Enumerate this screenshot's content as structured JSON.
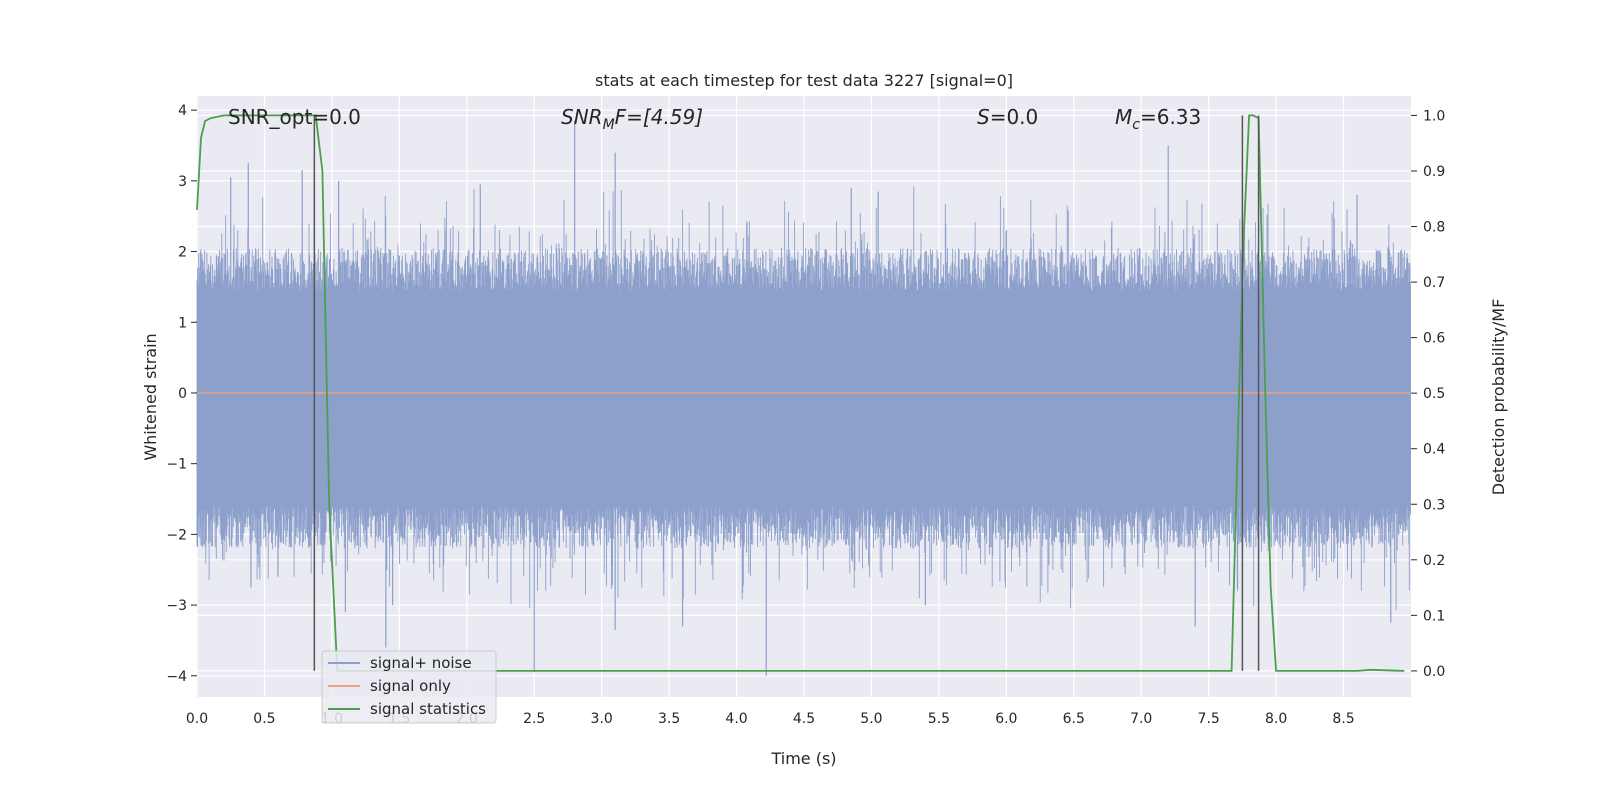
{
  "chart_data": {
    "type": "line",
    "title": "stats at each timestep for test data 3227 [signal=0]",
    "xlabel": "Time (s)",
    "ylabel": "Whitened strain",
    "ylabel_right": "Detection probability/MF",
    "xlim": [
      0.0,
      9.0
    ],
    "ylim": [
      -4.3,
      4.2
    ],
    "ylim_right": [
      -0.047,
      1.035
    ],
    "x_ticks": [
      0.0,
      0.5,
      1.0,
      1.5,
      2.0,
      2.5,
      3.0,
      3.5,
      4.0,
      4.5,
      5.0,
      5.5,
      6.0,
      6.5,
      7.0,
      7.5,
      8.0,
      8.5
    ],
    "x_tick_labels": [
      "0.0",
      "0.5",
      "1.0",
      "1.5",
      "2.0",
      "2.5",
      "3.0",
      "3.5",
      "4.0",
      "4.5",
      "5.0",
      "5.5",
      "6.0",
      "6.5",
      "7.0",
      "7.5",
      "8.0",
      "8.5"
    ],
    "y_ticks": [
      -4,
      -3,
      -2,
      -1,
      0,
      1,
      2,
      3,
      4
    ],
    "y_tick_labels": [
      "−4",
      "−3",
      "−2",
      "−1",
      "0",
      "1",
      "2",
      "3",
      "4"
    ],
    "y_ticks_right": [
      0.0,
      0.1,
      0.2,
      0.3,
      0.4,
      0.5,
      0.6,
      0.7,
      0.8,
      0.9,
      1.0
    ],
    "y_tick_labels_right": [
      "0.0",
      "0.1",
      "0.2",
      "0.3",
      "0.4",
      "0.5",
      "0.6",
      "0.7",
      "0.8",
      "0.9",
      "1.0"
    ],
    "grid": true,
    "legend_position": "lower-left",
    "annotations": {
      "snr_opt": "SNR_opt=0.0",
      "snr_mf_prefix": "SNR",
      "snr_mf_sub": "M",
      "snr_mf_suffix": "F=[4.59]",
      "s_prefix": "S",
      "s_suffix": "=0.0",
      "mc_prefix": "M",
      "mc_sub": "c",
      "mc_suffix": "=6.33"
    },
    "series": [
      {
        "name": "signal+ noise",
        "color": "#8da0cb",
        "axis": "left",
        "kind": "noise",
        "band": [
          -1.6,
          1.45
        ],
        "spikes": [
          {
            "x": 0.25,
            "y": 3.05
          },
          {
            "x": 0.38,
            "y": 3.25
          },
          {
            "x": 0.78,
            "y": 3.15
          },
          {
            "x": 1.05,
            "y": 3.0
          },
          {
            "x": 2.1,
            "y": 2.95
          },
          {
            "x": 2.8,
            "y": 3.85
          },
          {
            "x": 3.1,
            "y": 3.4
          },
          {
            "x": 4.85,
            "y": 2.9
          },
          {
            "x": 5.05,
            "y": 2.85
          },
          {
            "x": 7.2,
            "y": 3.5
          },
          {
            "x": 8.6,
            "y": 2.8
          },
          {
            "x": 0.4,
            "y": -2.75
          },
          {
            "x": 1.4,
            "y": -3.6
          },
          {
            "x": 1.45,
            "y": -3.0
          },
          {
            "x": 2.5,
            "y": -3.95
          },
          {
            "x": 3.1,
            "y": -3.35
          },
          {
            "x": 3.6,
            "y": -3.3
          },
          {
            "x": 4.22,
            "y": -4.0
          },
          {
            "x": 5.4,
            "y": -3.0
          },
          {
            "x": 7.4,
            "y": -3.3
          },
          {
            "x": 8.85,
            "y": -3.25
          },
          {
            "x": 1.1,
            "y": -3.1
          },
          {
            "x": 0.6,
            "y": -2.6
          }
        ]
      },
      {
        "name": "signal only",
        "color": "#e8a383",
        "axis": "left",
        "x": [
          0.0,
          9.0
        ],
        "y": [
          0.0,
          0.0
        ]
      },
      {
        "name": "signal statistics",
        "color": "#4c9f4c",
        "axis": "right",
        "x": [
          0.0,
          0.03,
          0.06,
          0.1,
          0.2,
          0.5,
          0.8,
          0.88,
          0.93,
          0.98,
          1.04,
          1.1,
          1.5,
          3.0,
          5.0,
          7.0,
          7.67,
          7.72,
          7.76,
          7.8,
          7.83,
          7.87,
          7.92,
          7.96,
          8.0,
          8.3,
          8.6,
          8.7,
          8.95
        ],
        "y": [
          0.83,
          0.96,
          0.99,
          0.995,
          1.0,
          1.0,
          1.0,
          1.0,
          0.9,
          0.3,
          0.0,
          0.0,
          0.0,
          0.0,
          0.0,
          0.0,
          0.0,
          0.45,
          0.78,
          1.0,
          1.0,
          0.995,
          0.5,
          0.15,
          0.0,
          0.0,
          0.0,
          0.002,
          0.0
        ]
      }
    ],
    "vertical_lines": [
      0.87,
      7.75,
      7.87
    ]
  }
}
